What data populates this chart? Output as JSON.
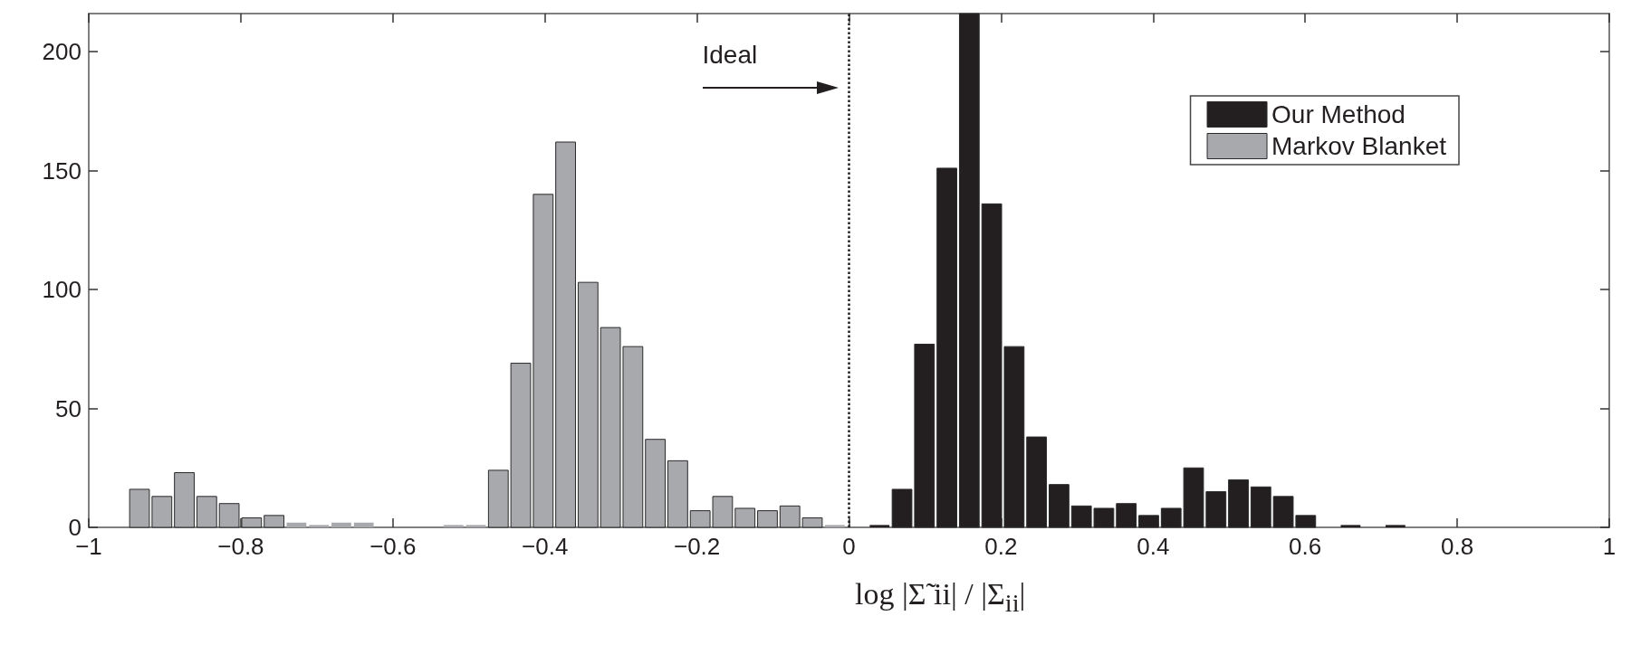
{
  "chart_data": {
    "type": "histogram",
    "xlabel": "log |Σ̃ ii| / |Σ$_{ii}$|",
    "bins": [
      -0.948,
      -0.9185,
      -0.889,
      -0.8595,
      -0.83,
      -0.8005,
      -0.771,
      -0.7415,
      -0.712,
      -0.6825,
      -0.653,
      -0.6235,
      -0.594,
      -0.5645,
      -0.535,
      -0.5055,
      -0.476,
      -0.4465,
      -0.417,
      -0.3875,
      -0.358,
      -0.3285,
      -0.299,
      -0.2695,
      -0.24,
      -0.2105,
      -0.181,
      -0.1515,
      -0.122,
      -0.0925,
      -0.063,
      -0.0335,
      -0.004,
      0.0255,
      0.055,
      0.0845,
      0.114,
      0.1435,
      0.173,
      0.2025,
      0.232,
      0.2615,
      0.291,
      0.3205,
      0.35,
      0.3795,
      0.409,
      0.4385,
      0.468,
      0.4975,
      0.527,
      0.5565,
      0.586,
      0.6155,
      0.645,
      0.6745,
      0.704,
      0.7335
    ],
    "series": [
      {
        "name": "Our Method",
        "color": "#231f20",
        "values": [
          0,
          0,
          0,
          0,
          0,
          0,
          0,
          0,
          0,
          0,
          0,
          0,
          0,
          0,
          0,
          0,
          0,
          0,
          0,
          0,
          0,
          0,
          0,
          0,
          0,
          0,
          0,
          0,
          0,
          0,
          0,
          0,
          0,
          1,
          16,
          77,
          151,
          216,
          136,
          76,
          38,
          18,
          9,
          8,
          10,
          5,
          8,
          25,
          15,
          20,
          17,
          13,
          5,
          0,
          1,
          0,
          1
        ]
      },
      {
        "name": "Markov Blanket",
        "color": "#a8a9ad",
        "values": [
          16,
          13,
          23,
          13,
          10,
          4,
          5,
          2,
          1,
          2,
          2,
          0,
          0,
          0,
          1,
          1,
          24,
          69,
          140,
          162,
          103,
          84,
          76,
          37,
          28,
          7,
          13,
          8,
          7,
          9,
          4,
          1,
          0,
          0,
          0,
          0,
          0,
          0,
          0,
          0,
          0,
          0,
          0,
          0,
          0,
          0,
          0,
          0,
          0,
          0,
          0,
          0,
          0,
          0,
          0,
          0,
          0
        ]
      }
    ],
    "xlim": [
      -1,
      1
    ],
    "xticks": [
      {
        "value": -1,
        "label": "−1"
      },
      {
        "value": -0.8,
        "label": "−0.8"
      },
      {
        "value": -0.6,
        "label": "−0.6"
      },
      {
        "value": -0.4,
        "label": "−0.4"
      },
      {
        "value": -0.2,
        "label": "−0.2"
      },
      0,
      0.2,
      0.4,
      0.6,
      0.8,
      1
    ],
    "ylim": [
      0,
      216
    ],
    "yticks": [
      0,
      50,
      100,
      150,
      200
    ],
    "ref_lines": [
      {
        "axis": "x",
        "value": 0,
        "label": null,
        "color": "#231f20",
        "line_style": "dotted"
      }
    ],
    "annotations": [
      "Ideal"
    ],
    "legend": "top right",
    "grid": false
  }
}
